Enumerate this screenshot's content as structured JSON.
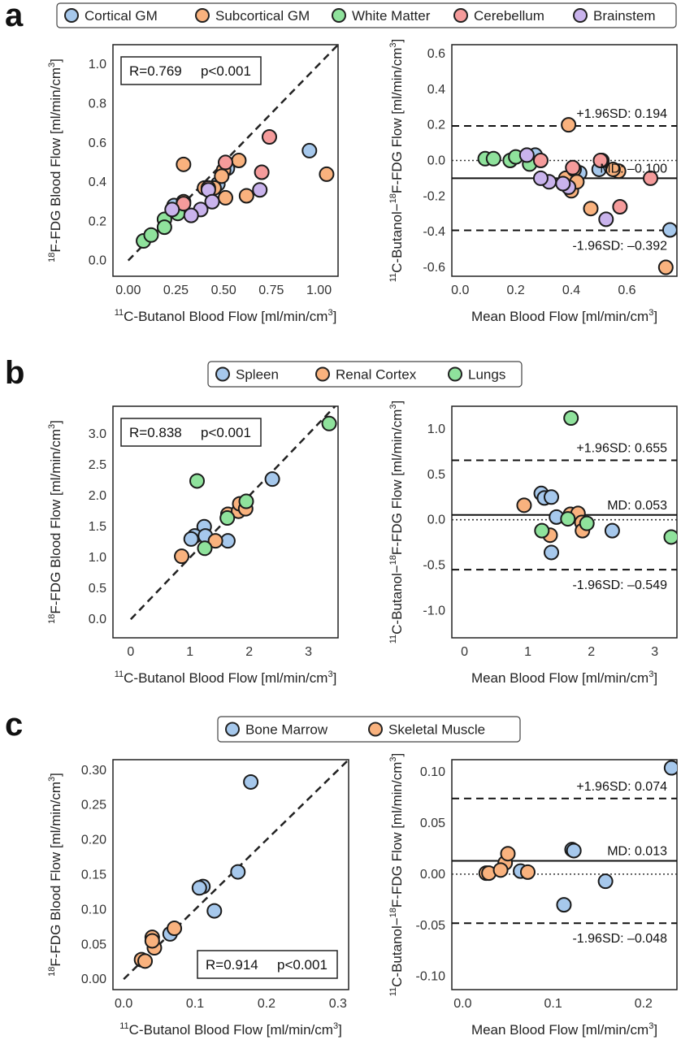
{
  "panels": [
    {
      "letter": "a",
      "legend": [
        {
          "name": "Cortical GM",
          "color": "#a6c8ec"
        },
        {
          "name": "Subcortical GM",
          "color": "#f9b27e"
        },
        {
          "name": "White Matter",
          "color": "#8fe29c"
        },
        {
          "name": "Cerebellum",
          "color": "#f59b9b"
        },
        {
          "name": "Brainstem",
          "color": "#c9b3ec"
        }
      ],
      "stats": {
        "R": "R=0.769",
        "p": "p<0.001",
        "position": "top-left"
      },
      "sd": {
        "upper_label": "+1.96SD: 0.194",
        "lower_label": "-1.96SD: –0.392",
        "md_label": "MD: –0.100"
      }
    },
    {
      "letter": "b",
      "legend": [
        {
          "name": "Spleen",
          "color": "#a6c8ec"
        },
        {
          "name": "Renal Cortex",
          "color": "#f9b27e"
        },
        {
          "name": "Lungs",
          "color": "#8fe29c"
        }
      ],
      "stats": {
        "R": "R=0.838",
        "p": "p<0.001",
        "position": "top-left"
      },
      "sd": {
        "upper_label": "+1.96SD: 0.655",
        "lower_label": "-1.96SD: –0.549",
        "md_label": "MD: 0.053"
      }
    },
    {
      "letter": "c",
      "legend": [
        {
          "name": "Bone Marrow",
          "color": "#a6c8ec"
        },
        {
          "name": "Skeletal Muscle",
          "color": "#f9b27e"
        }
      ],
      "stats": {
        "R": "R=0.914",
        "p": "p<0.001",
        "position": "bottom-right"
      },
      "sd": {
        "upper_label": "+1.96SD: 0.074",
        "lower_label": "-1.96SD: –0.048",
        "md_label": "MD: 0.013"
      }
    }
  ],
  "chart_data": [
    {
      "panel": "a",
      "type": "scatter",
      "title": "",
      "xlabel": "11C-Butanol Blood Flow [ml/min/cm3]",
      "ylabel": "18F-FDG Blood Flow [ml/min/cm3]",
      "xlim": [
        -0.08,
        1.1
      ],
      "ylim": [
        -0.08,
        1.1
      ],
      "xticks": [
        "0.00",
        "0.25",
        "0.50",
        "0.75",
        "1.00"
      ],
      "yticks": [
        "0.0",
        "0.2",
        "0.4",
        "0.6",
        "0.8",
        "1.0"
      ],
      "identity_line": true,
      "series": [
        {
          "name": "Cortical GM",
          "color": "#a6c8ec",
          "points": [
            [
              0.95,
              0.56
            ],
            [
              0.52,
              0.47
            ],
            [
              0.47,
              0.39
            ],
            [
              0.24,
              0.28
            ]
          ]
        },
        {
          "name": "Subcortical GM",
          "color": "#f9b27e",
          "points": [
            [
              1.04,
              0.44
            ],
            [
              0.29,
              0.49
            ],
            [
              0.58,
              0.51
            ],
            [
              0.62,
              0.33
            ],
            [
              0.5,
              0.46
            ],
            [
              0.49,
              0.43
            ],
            [
              0.51,
              0.32
            ],
            [
              0.45,
              0.37
            ],
            [
              0.29,
              0.3
            ],
            [
              0.4,
              0.37
            ]
          ]
        },
        {
          "name": "White Matter",
          "color": "#8fe29c",
          "points": [
            [
              0.08,
              0.1
            ],
            [
              0.12,
              0.13
            ],
            [
              0.19,
              0.21
            ],
            [
              0.19,
              0.17
            ],
            [
              0.26,
              0.24
            ]
          ]
        },
        {
          "name": "Cerebellum",
          "color": "#f59b9b",
          "points": [
            [
              0.74,
              0.63
            ],
            [
              0.7,
              0.45
            ],
            [
              0.51,
              0.5
            ],
            [
              0.42,
              0.37
            ],
            [
              0.29,
              0.29
            ]
          ]
        },
        {
          "name": "Brainstem",
          "color": "#c9b3ec",
          "points": [
            [
              0.69,
              0.36
            ],
            [
              0.42,
              0.36
            ],
            [
              0.44,
              0.3
            ],
            [
              0.38,
              0.26
            ],
            [
              0.33,
              0.23
            ],
            [
              0.23,
              0.26
            ]
          ]
        }
      ]
    },
    {
      "panel": "a",
      "type": "scatter",
      "title": "",
      "xlabel": "Mean Blood Flow [ml/min/cm3]",
      "ylabel": "11C-Butanol−18F-FDG Flow [ml/min/cm3]",
      "xlim": [
        -0.03,
        0.78
      ],
      "ylim": [
        -0.65,
        0.65
      ],
      "xticks": [
        "0.0",
        "0.2",
        "0.4",
        "0.6"
      ],
      "yticks": [
        "0.6",
        "0.4",
        "0.2",
        "0.0",
        "-0.2",
        "-0.4",
        "-0.6"
      ],
      "md": -0.1,
      "upper_sd": 0.194,
      "lower_sd": -0.392,
      "series": [
        {
          "name": "Cortical GM",
          "color": "#a6c8ec",
          "points": [
            [
              0.755,
              -0.39
            ],
            [
              0.5,
              -0.05
            ],
            [
              0.43,
              -0.07
            ],
            [
              0.27,
              0.03
            ]
          ]
        },
        {
          "name": "Subcortical GM",
          "color": "#f9b27e",
          "points": [
            [
              0.74,
              -0.6
            ],
            [
              0.39,
              0.2
            ],
            [
              0.47,
              -0.27
            ],
            [
              0.57,
              -0.06
            ],
            [
              0.4,
              -0.17
            ],
            [
              0.38,
              -0.1
            ],
            [
              0.55,
              -0.05
            ],
            [
              0.51,
              0.0
            ],
            [
              0.41,
              -0.05
            ],
            [
              0.42,
              -0.12
            ]
          ]
        },
        {
          "name": "White Matter",
          "color": "#8fe29c",
          "points": [
            [
              0.09,
              0.01
            ],
            [
              0.12,
              0.01
            ],
            [
              0.18,
              0.0
            ],
            [
              0.2,
              0.02
            ],
            [
              0.25,
              -0.02
            ]
          ]
        },
        {
          "name": "Cerebellum",
          "color": "#f59b9b",
          "points": [
            [
              0.685,
              -0.1
            ],
            [
              0.575,
              -0.26
            ],
            [
              0.505,
              0.0
            ],
            [
              0.405,
              -0.04
            ],
            [
              0.29,
              0.0
            ]
          ]
        },
        {
          "name": "Brainstem",
          "color": "#c9b3ec",
          "points": [
            [
              0.525,
              -0.33
            ],
            [
              0.39,
              -0.15
            ],
            [
              0.37,
              -0.13
            ],
            [
              0.32,
              -0.12
            ],
            [
              0.29,
              -0.1
            ],
            [
              0.24,
              0.03
            ]
          ]
        }
      ]
    },
    {
      "panel": "b",
      "type": "scatter",
      "title": "",
      "xlabel": "11C-Butanol Blood Flow [ml/min/cm3]",
      "ylabel": "18F-FDG Blood Flow [ml/min/cm3]",
      "xlim": [
        -0.3,
        3.5
      ],
      "ylim": [
        -0.3,
        3.45
      ],
      "xticks": [
        "0",
        "1",
        "2",
        "3"
      ],
      "yticks": [
        "0.0",
        "0.5",
        "1.0",
        "1.5",
        "2.0",
        "2.5",
        "3.0"
      ],
      "identity_line": true,
      "series": [
        {
          "name": "Spleen",
          "color": "#a6c8ec",
          "points": [
            [
              2.39,
              2.27
            ],
            [
              1.24,
              1.5
            ],
            [
              1.08,
              1.35
            ],
            [
              1.02,
              1.3
            ],
            [
              1.26,
              1.35
            ],
            [
              1.64,
              1.27
            ]
          ]
        },
        {
          "name": "Renal Cortex",
          "color": "#f9b27e",
          "points": [
            [
              0.86,
              1.02
            ],
            [
              1.43,
              1.27
            ],
            [
              1.64,
              1.7
            ],
            [
              1.82,
              1.75
            ],
            [
              1.84,
              1.87
            ],
            [
              1.94,
              1.79
            ]
          ]
        },
        {
          "name": "Lungs",
          "color": "#8fe29c",
          "points": [
            [
              3.35,
              3.17
            ],
            [
              1.12,
              2.24
            ],
            [
              1.25,
              1.15
            ],
            [
              1.95,
              1.91
            ],
            [
              1.63,
              1.64
            ]
          ]
        }
      ]
    },
    {
      "panel": "b",
      "type": "scatter",
      "title": "",
      "xlabel": "Mean Blood Flow [ml/min/cm3]",
      "ylabel": "11C-Butanol−18F-FDG Flow [ml/min/cm3]",
      "xlim": [
        -0.2,
        3.35
      ],
      "ylim": [
        -1.3,
        1.25
      ],
      "xticks": [
        "0",
        "1",
        "2",
        "3"
      ],
      "yticks": [
        "1.0",
        "0.5",
        "0.0",
        "-0.5",
        "-1.0"
      ],
      "md": 0.053,
      "upper_sd": 0.655,
      "lower_sd": -0.549,
      "series": [
        {
          "name": "Spleen",
          "color": "#a6c8ec",
          "points": [
            [
              2.33,
              -0.12
            ],
            [
              1.37,
              -0.36
            ],
            [
              1.21,
              0.29
            ],
            [
              1.26,
              0.24
            ],
            [
              1.37,
              0.25
            ],
            [
              1.45,
              0.03
            ]
          ]
        },
        {
          "name": "Renal Cortex",
          "color": "#f9b27e",
          "points": [
            [
              0.94,
              0.16
            ],
            [
              1.35,
              -0.17
            ],
            [
              1.67,
              0.06
            ],
            [
              1.79,
              0.07
            ],
            [
              1.85,
              -0.03
            ],
            [
              1.86,
              -0.12
            ]
          ]
        },
        {
          "name": "Lungs",
          "color": "#8fe29c",
          "points": [
            [
              1.68,
              1.12
            ],
            [
              3.26,
              -0.19
            ],
            [
              1.22,
              -0.12
            ],
            [
              1.93,
              -0.04
            ],
            [
              1.63,
              0.01
            ]
          ]
        }
      ]
    },
    {
      "panel": "c",
      "type": "scatter",
      "title": "",
      "xlabel": "11C-Butanol Blood Flow [ml/min/cm3]",
      "ylabel": "18F-FDG Blood Flow [ml/min/cm3]",
      "xlim": [
        -0.015,
        0.315
      ],
      "ylim": [
        -0.015,
        0.315
      ],
      "xticks": [
        "0.0",
        "0.1",
        "0.2",
        "0.3"
      ],
      "yticks": [
        "0.00",
        "0.05",
        "0.10",
        "0.15",
        "0.20",
        "0.25",
        "0.30"
      ],
      "identity_line": true,
      "series": [
        {
          "name": "Bone Marrow",
          "color": "#a6c8ec",
          "points": [
            [
              0.178,
              0.283
            ],
            [
              0.16,
              0.154
            ],
            [
              0.111,
              0.133
            ],
            [
              0.106,
              0.131
            ],
            [
              0.127,
              0.098
            ],
            [
              0.065,
              0.065
            ]
          ]
        },
        {
          "name": "Skeletal Muscle",
          "color": "#f9b27e",
          "points": [
            [
              0.025,
              0.028
            ],
            [
              0.03,
              0.026
            ],
            [
              0.04,
              0.06
            ],
            [
              0.043,
              0.045
            ],
            [
              0.071,
              0.073
            ],
            [
              0.04,
              0.055
            ]
          ]
        }
      ]
    },
    {
      "panel": "c",
      "type": "scatter",
      "title": "",
      "xlabel": "Mean Blood Flow [ml/min/cm3]",
      "ylabel": "11C-Butanol−18F-FDG Flow [ml/min/cm3]",
      "xlim": [
        -0.012,
        0.237
      ],
      "ylim": [
        -0.113,
        0.112
      ],
      "xticks": [
        "0.0",
        "0.1",
        "0.2"
      ],
      "yticks": [
        "0.10",
        "0.05",
        "0.00",
        "-0.05",
        "-0.10"
      ],
      "md": 0.013,
      "upper_sd": 0.074,
      "lower_sd": -0.048,
      "series": [
        {
          "name": "Bone Marrow",
          "color": "#a6c8ec",
          "points": [
            [
              0.231,
              0.104
            ],
            [
              0.121,
              0.024
            ],
            [
              0.123,
              0.023
            ],
            [
              0.158,
              -0.007
            ],
            [
              0.112,
              -0.03
            ],
            [
              0.064,
              0.003
            ]
          ]
        },
        {
          "name": "Skeletal Muscle",
          "color": "#f9b27e",
          "points": [
            [
              0.026,
              0.001
            ],
            [
              0.029,
              0.001
            ],
            [
              0.047,
              0.011
            ],
            [
              0.05,
              0.02
            ],
            [
              0.072,
              0.002
            ],
            [
              0.042,
              0.004
            ]
          ]
        }
      ]
    }
  ]
}
